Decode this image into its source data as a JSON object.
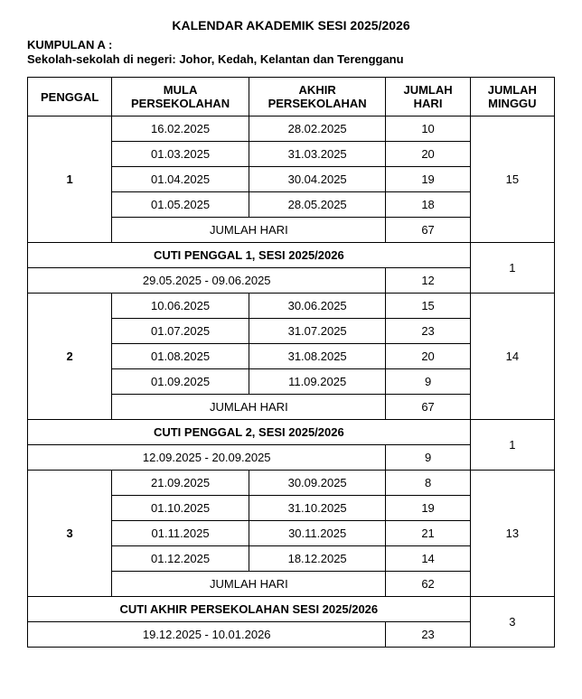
{
  "title": "KALENDAR AKADEMIK SESI 2025/2026",
  "group_label": "KUMPULAN A :",
  "subtitle": "Sekolah-sekolah di negeri: Johor, Kedah, Kelantan dan Terengganu",
  "columns": {
    "penggal": "PENGGAL",
    "mula": "MULA PERSEKOLAHAN",
    "akhir": "AKHIR PERSEKOLAHAN",
    "hari": "JUMLAH HARI",
    "minggu": "JUMLAH MINGGU"
  },
  "jumlah_hari_label": "JUMLAH HARI",
  "terms": [
    {
      "label": "1",
      "rows": [
        {
          "mula": "16.02.2025",
          "akhir": "28.02.2025",
          "hari": "10"
        },
        {
          "mula": "01.03.2025",
          "akhir": "31.03.2025",
          "hari": "20"
        },
        {
          "mula": "01.04.2025",
          "akhir": "30.04.2025",
          "hari": "19"
        },
        {
          "mula": "01.05.2025",
          "akhir": "28.05.2025",
          "hari": "18"
        }
      ],
      "jumlah_hari": "67",
      "minggu": "15",
      "cuti_header": "CUTI PENGGAL 1, SESI 2025/2026",
      "cuti_range": "29.05.2025 - 09.06.2025",
      "cuti_hari": "12",
      "cuti_minggu": "1"
    },
    {
      "label": "2",
      "rows": [
        {
          "mula": "10.06.2025",
          "akhir": "30.06.2025",
          "hari": "15"
        },
        {
          "mula": "01.07.2025",
          "akhir": "31.07.2025",
          "hari": "23"
        },
        {
          "mula": "01.08.2025",
          "akhir": "31.08.2025",
          "hari": "20"
        },
        {
          "mula": "01.09.2025",
          "akhir": "11.09.2025",
          "hari": "9"
        }
      ],
      "jumlah_hari": "67",
      "minggu": "14",
      "cuti_header": "CUTI PENGGAL 2, SESI 2025/2026",
      "cuti_range": "12.09.2025 - 20.09.2025",
      "cuti_hari": "9",
      "cuti_minggu": "1"
    },
    {
      "label": "3",
      "rows": [
        {
          "mula": "21.09.2025",
          "akhir": "30.09.2025",
          "hari": "8"
        },
        {
          "mula": "01.10.2025",
          "akhir": "31.10.2025",
          "hari": "19"
        },
        {
          "mula": "01.11.2025",
          "akhir": "30.11.2025",
          "hari": "21"
        },
        {
          "mula": "01.12.2025",
          "akhir": "18.12.2025",
          "hari": "14"
        }
      ],
      "jumlah_hari": "62",
      "minggu": "13",
      "cuti_header": "CUTI AKHIR PERSEKOLAHAN SESI 2025/2026",
      "cuti_range": "19.12.2025 - 10.01.2026",
      "cuti_hari": "23",
      "cuti_minggu": "3"
    }
  ]
}
